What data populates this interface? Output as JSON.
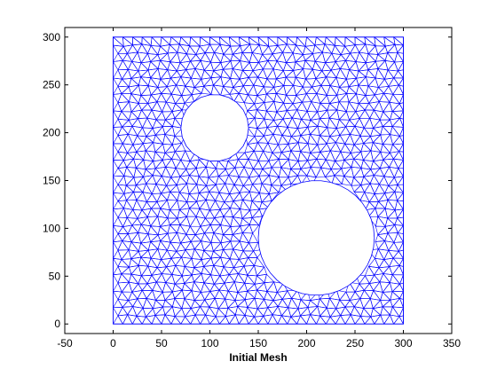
{
  "chart_data": {
    "type": "scatter",
    "title": "",
    "xlabel": "Initial Mesh",
    "ylabel": "",
    "xlim": [
      -50,
      350
    ],
    "ylim": [
      -10,
      310
    ],
    "xticks": [
      -50,
      0,
      50,
      100,
      150,
      200,
      250,
      300,
      350
    ],
    "yticks": [
      0,
      50,
      100,
      150,
      200,
      250,
      300
    ],
    "xtick_labels": [
      "-50",
      "0",
      "50",
      "100",
      "150",
      "200",
      "250",
      "300",
      "350"
    ],
    "ytick_labels": [
      "0",
      "50",
      "100",
      "150",
      "200",
      "250",
      "300"
    ],
    "grid": false,
    "domain": {
      "x": [
        0,
        300
      ],
      "y": [
        0,
        300
      ]
    },
    "holes": [
      {
        "cx": 105,
        "cy": 205,
        "r": 35
      },
      {
        "cx": 210,
        "cy": 90,
        "r": 60
      }
    ],
    "element_size": 10,
    "colors": {
      "mesh": "#0000ff",
      "axes": "#000000",
      "background": "#ffffff"
    }
  }
}
